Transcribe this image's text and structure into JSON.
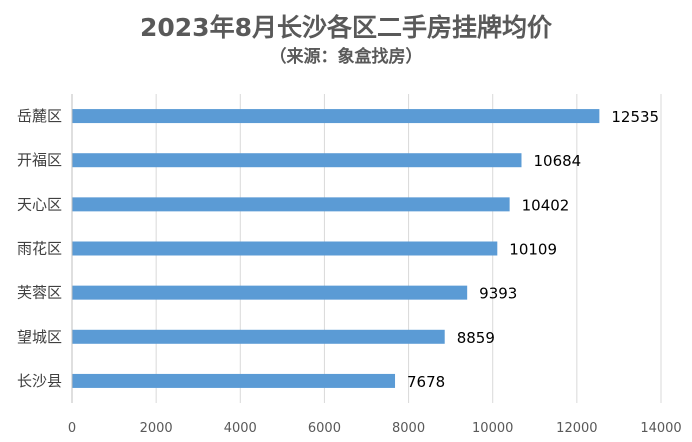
{
  "chart_data": {
    "type": "bar",
    "orientation": "horizontal",
    "title": "2023年8月长沙各区二手房挂牌均价",
    "subtitle": "（来源：象盒找房）",
    "categories": [
      "岳麓区",
      "开福区",
      "天心区",
      "雨花区",
      "芙蓉区",
      "望城区",
      "长沙县"
    ],
    "values": [
      12535,
      10684,
      10402,
      10109,
      9393,
      8859,
      7678
    ],
    "xlim": [
      0,
      14000
    ],
    "xticks": [
      0,
      2000,
      4000,
      6000,
      8000,
      10000,
      12000,
      14000
    ],
    "xlabel": "",
    "ylabel": "",
    "grid": "vertical",
    "bar_color": "#5b9bd5",
    "data_labels": true
  }
}
